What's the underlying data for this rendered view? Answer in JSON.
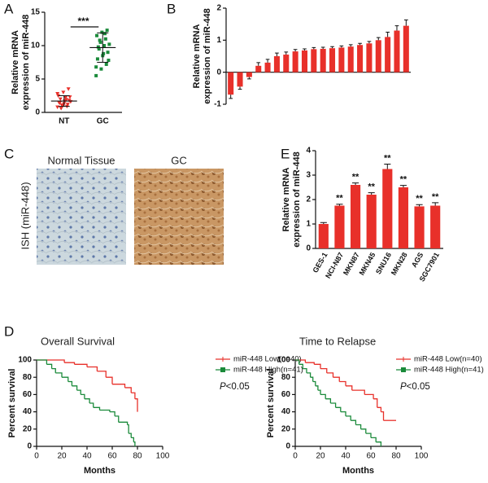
{
  "chart_data": [
    {
      "type": "scatter",
      "panel": "A",
      "ylabel_lines": [
        "Relative mRNA",
        "expression of miR-448"
      ],
      "categories": [
        "NT",
        "GC"
      ],
      "series": [
        {
          "color": "#e8302a",
          "values": [
            0.8,
            1.0,
            1.2,
            1.5,
            1.3,
            1.8,
            2.0,
            2.2,
            1.6,
            1.1,
            0.9,
            2.5,
            3.0,
            3.5,
            1.4,
            1.7,
            2.3,
            0.6,
            1.9,
            2.8
          ],
          "mean": 1.7,
          "sd": 0.8
        },
        {
          "color": "#1a8a3a",
          "values": [
            5.5,
            6.5,
            7.2,
            8.0,
            8.5,
            9.0,
            9.5,
            10.0,
            10.2,
            10.5,
            11.0,
            11.5,
            12.0,
            12.3,
            9.8,
            8.8,
            7.8,
            10.8,
            11.8,
            6.8
          ],
          "mean": 9.7,
          "sd": 2.2
        }
      ],
      "significance": "***",
      "ylim": [
        0,
        15
      ],
      "yticks": [
        0,
        5,
        10,
        15
      ]
    },
    {
      "type": "bar",
      "panel": "B",
      "ylabel_lines": [
        "Relative mRNA",
        "expression of miR-448"
      ],
      "color": "#e8302a",
      "values": [
        -0.7,
        -0.45,
        -0.15,
        0.2,
        0.3,
        0.5,
        0.55,
        0.65,
        0.68,
        0.72,
        0.73,
        0.75,
        0.77,
        0.8,
        0.85,
        0.9,
        1.0,
        1.1,
        1.3,
        1.45
      ],
      "errors": [
        0.12,
        0.08,
        0.06,
        0.1,
        0.1,
        0.1,
        0.08,
        0.06,
        0.05,
        0.05,
        0.05,
        0.05,
        0.05,
        0.06,
        0.05,
        0.06,
        0.08,
        0.15,
        0.15,
        0.18
      ],
      "ylim": [
        -1,
        2
      ],
      "yticks": [
        -1,
        0,
        1,
        2
      ]
    },
    {
      "type": "bar",
      "panel": "E",
      "ylabel_lines": [
        "Relative mRNA",
        "expression of miR-448"
      ],
      "color": "#e8302a",
      "categories": [
        "GES-1",
        "NCI-N87",
        "MKN87",
        "MKN45",
        "SNU16",
        "MKN28",
        "AGS",
        "SGC7901"
      ],
      "values": [
        1.0,
        1.75,
        2.6,
        2.2,
        3.25,
        2.5,
        1.72,
        1.75
      ],
      "errors": [
        0.06,
        0.06,
        0.08,
        0.08,
        0.2,
        0.08,
        0.07,
        0.12
      ],
      "significance": [
        null,
        "**",
        "**",
        "**",
        "**",
        "**",
        "**",
        "**"
      ],
      "ylim": [
        0,
        4
      ],
      "yticks": [
        0,
        1,
        2,
        3,
        4
      ]
    },
    {
      "type": "step",
      "panel": "D",
      "title": "Overall Survival",
      "xlabel": "Months",
      "ylabel": "Percent survival",
      "series": [
        {
          "name": "miR-448 Low(n=40)",
          "color": "#e8302a",
          "x": [
            0,
            22,
            30,
            40,
            48,
            55,
            60,
            70,
            75,
            78,
            80
          ],
          "y": [
            100,
            97,
            95,
            92,
            87,
            80,
            72,
            68,
            62,
            55,
            40
          ]
        },
        {
          "name": "miR-448 High(n=41)",
          "color": "#1a8a3a",
          "x": [
            0,
            8,
            12,
            15,
            20,
            25,
            28,
            32,
            35,
            38,
            42,
            45,
            50,
            58,
            62,
            65,
            72,
            73,
            75,
            77,
            78
          ],
          "y": [
            100,
            95,
            90,
            85,
            80,
            75,
            70,
            65,
            60,
            55,
            50,
            45,
            42,
            40,
            35,
            28,
            25,
            15,
            10,
            5,
            0
          ]
        }
      ],
      "p_value": {
        "symbol": "P",
        "text": "<0.05"
      },
      "xlim": [
        0,
        100
      ],
      "xticks": [
        0,
        20,
        40,
        60,
        80,
        100
      ],
      "ylim": [
        0,
        100
      ],
      "yticks": [
        0,
        20,
        40,
        60,
        80,
        100
      ]
    },
    {
      "type": "step",
      "title": "Time to Relapse",
      "xlabel": "Months",
      "ylabel": "Percent survival",
      "series": [
        {
          "name": "miR-448 Low(n=40)",
          "color": "#e8302a",
          "x": [
            0,
            8,
            15,
            20,
            25,
            30,
            35,
            40,
            45,
            55,
            62,
            65,
            68,
            70,
            80
          ],
          "y": [
            100,
            97,
            95,
            90,
            85,
            80,
            75,
            70,
            65,
            60,
            55,
            45,
            40,
            30,
            30
          ]
        },
        {
          "name": "miR-448 High(n=41)",
          "color": "#1a8a3a",
          "x": [
            0,
            3,
            6,
            9,
            12,
            14,
            16,
            18,
            20,
            24,
            28,
            32,
            36,
            40,
            44,
            48,
            52,
            56,
            60,
            64,
            68
          ],
          "y": [
            100,
            95,
            90,
            85,
            80,
            75,
            70,
            65,
            60,
            55,
            50,
            45,
            40,
            35,
            30,
            25,
            20,
            15,
            10,
            5,
            0
          ]
        }
      ],
      "p_value": {
        "symbol": "P",
        "text": "<0.05"
      },
      "xlim": [
        0,
        100
      ],
      "xticks": [
        0,
        20,
        40,
        60,
        80,
        100
      ],
      "ylim": [
        0,
        100
      ],
      "yticks": [
        0,
        20,
        40,
        60,
        80,
        100
      ]
    }
  ],
  "images_panel": {
    "panel": "C",
    "titles": [
      "Normal Tissue",
      "GC"
    ],
    "side_label": "ISH (miR-448)"
  }
}
